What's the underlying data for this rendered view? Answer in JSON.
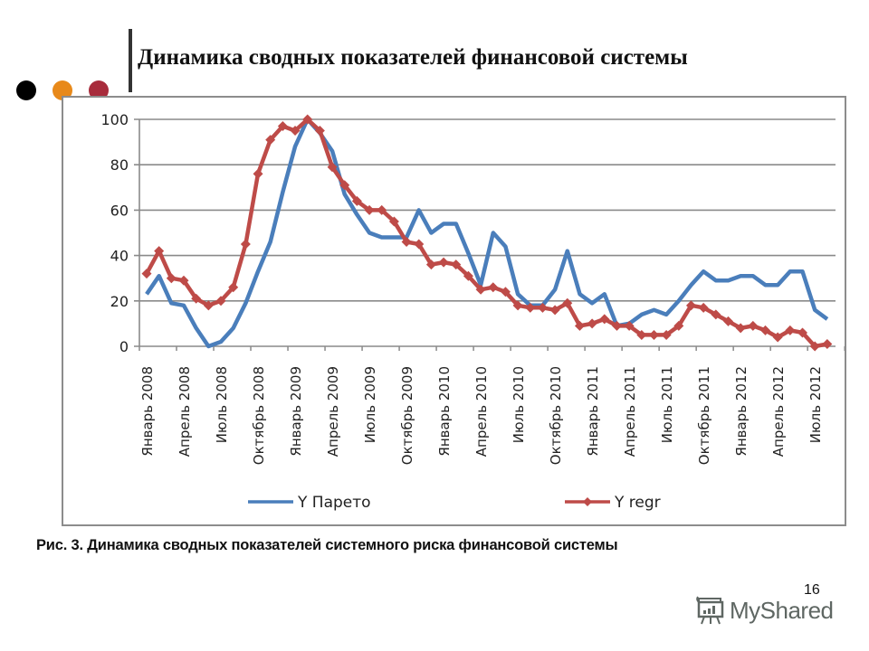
{
  "slide": {
    "title": "Динамика сводных показателей финансовой системы",
    "bullets_colors": [
      "#000000",
      "#e8891a",
      "#a82c3c"
    ],
    "caption": "Рис. 3. Динамика сводных показателей системного риска финансовой системы",
    "page_number": "16",
    "watermark": "MyShared"
  },
  "chart_data": {
    "type": "line",
    "title": "",
    "xlabel": "",
    "ylabel": "",
    "ylim": [
      0,
      100
    ],
    "yticks": [
      0,
      20,
      40,
      60,
      80,
      100
    ],
    "grid": true,
    "legend_position": "bottom",
    "x_tick_labels": [
      "Январь 2008",
      "Апрель 2008",
      "Июль 2008",
      "Октябрь 2008",
      "Январь 2009",
      "Апрель 2009",
      "Июль 2009",
      "Октябрь 2009",
      "Январь 2010",
      "Апрель 2010",
      "Июль 2010",
      "Октябрь 2010",
      "Январь 2011",
      "Апрель 2011",
      "Июль 2011",
      "Октябрь 2011",
      "Январь 2012",
      "Апрель 2012",
      "Июль 2012"
    ],
    "x": [
      "2008-01",
      "2008-02",
      "2008-03",
      "2008-04",
      "2008-05",
      "2008-06",
      "2008-07",
      "2008-08",
      "2008-09",
      "2008-10",
      "2008-11",
      "2008-12",
      "2009-01",
      "2009-02",
      "2009-03",
      "2009-04",
      "2009-05",
      "2009-06",
      "2009-07",
      "2009-08",
      "2009-09",
      "2009-10",
      "2009-11",
      "2009-12",
      "2010-01",
      "2010-02",
      "2010-03",
      "2010-04",
      "2010-05",
      "2010-06",
      "2010-07",
      "2010-08",
      "2010-09",
      "2010-10",
      "2010-11",
      "2010-12",
      "2011-01",
      "2011-02",
      "2011-03",
      "2011-04",
      "2011-05",
      "2011-06",
      "2011-07",
      "2011-08",
      "2011-09",
      "2011-10",
      "2011-11",
      "2011-12",
      "2012-01",
      "2012-02",
      "2012-03",
      "2012-04",
      "2012-05",
      "2012-06",
      "2012-07",
      "2012-08"
    ],
    "series": [
      {
        "name": "Y Парето",
        "color": "#4a7ebb",
        "marker": "none",
        "values": [
          23,
          31,
          19,
          18,
          8,
          0,
          2,
          8,
          19,
          33,
          46,
          68,
          88,
          100,
          94,
          86,
          67,
          58,
          50,
          48,
          48,
          48,
          60,
          50,
          54,
          54,
          41,
          27,
          50,
          44,
          23,
          18,
          18,
          25,
          42,
          23,
          19,
          23,
          9,
          10,
          14,
          16,
          14,
          20,
          27,
          33,
          29,
          29,
          31,
          31,
          27,
          27,
          33,
          33,
          16,
          12
        ]
      },
      {
        "name": "Y regr",
        "color": "#be4b48",
        "marker": "diamond",
        "values": [
          32,
          42,
          30,
          29,
          21,
          18,
          20,
          26,
          45,
          76,
          91,
          97,
          95,
          100,
          95,
          79,
          71,
          64,
          60,
          60,
          55,
          46,
          45,
          36,
          37,
          36,
          31,
          25,
          26,
          24,
          18,
          17,
          17,
          16,
          19,
          9,
          10,
          12,
          9,
          9,
          5,
          5,
          5,
          9,
          18,
          17,
          14,
          11,
          8,
          9,
          7,
          4,
          7,
          6,
          0,
          1
        ]
      }
    ]
  }
}
